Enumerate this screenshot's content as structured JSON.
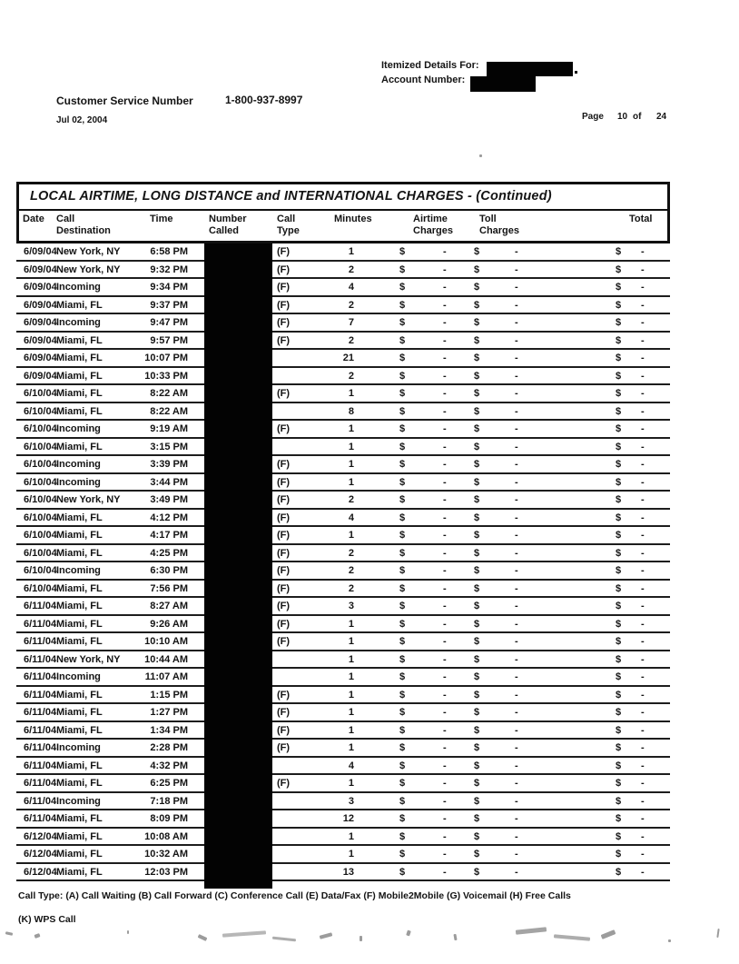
{
  "header": {
    "itemized_label": "Itemized Details For:",
    "account_label": "Account Number:",
    "customer_service_label": "Customer Service Number",
    "customer_service_number": "1-800-937-8997",
    "statement_date": "Jul 02, 2004",
    "page_label": "Page",
    "page_current": "10",
    "page_of": "of",
    "page_total": "24"
  },
  "table": {
    "title": "LOCAL AIRTIME, LONG DISTANCE and INTERNATIONAL CHARGES  - (Continued)",
    "columns": {
      "date": "Date",
      "destination_line1": "Call",
      "destination_line2": "Destination",
      "time": "Time",
      "number_line1": "Number",
      "number_line2": "Called",
      "type_line1": "Call",
      "type_line2": "Type",
      "minutes": "Minutes",
      "airtime_line1": "Airtime",
      "airtime_line2": "Charges",
      "toll_line1": "Toll",
      "toll_line2": "Charges",
      "total": "Total"
    },
    "currency_symbol": "$",
    "empty_amount": "-",
    "rows": [
      [
        "6/09/04",
        "New York, NY",
        "6:58 PM",
        "(F)",
        "1"
      ],
      [
        "6/09/04",
        "New York, NY",
        "9:32 PM",
        "(F)",
        "2"
      ],
      [
        "6/09/04",
        "Incoming",
        "9:34 PM",
        "(F)",
        "4"
      ],
      [
        "6/09/04",
        "Miami, FL",
        "9:37 PM",
        "(F)",
        "2"
      ],
      [
        "6/09/04",
        "Incoming",
        "9:47 PM",
        "(F)",
        "7"
      ],
      [
        "6/09/04",
        "Miami, FL",
        "9:57 PM",
        "(F)",
        "2"
      ],
      [
        "6/09/04",
        "Miami, FL",
        "10:07 PM",
        "",
        "21"
      ],
      [
        "6/09/04",
        "Miami, FL",
        "10:33 PM",
        "",
        "2"
      ],
      [
        "6/10/04",
        "Miami, FL",
        "8:22 AM",
        "(F)",
        "1"
      ],
      [
        "6/10/04",
        "Miami, FL",
        "8:22 AM",
        "",
        "8"
      ],
      [
        "6/10/04",
        "Incoming",
        "9:19 AM",
        "(F)",
        "1"
      ],
      [
        "6/10/04",
        "Miami, FL",
        "3:15 PM",
        "",
        "1"
      ],
      [
        "6/10/04",
        "Incoming",
        "3:39 PM",
        "(F)",
        "1"
      ],
      [
        "6/10/04",
        "Incoming",
        "3:44 PM",
        "(F)",
        "1"
      ],
      [
        "6/10/04",
        "New York, NY",
        "3:49 PM",
        "(F)",
        "2"
      ],
      [
        "6/10/04",
        "Miami, FL",
        "4:12 PM",
        "(F)",
        "4"
      ],
      [
        "6/10/04",
        "Miami, FL",
        "4:17 PM",
        "(F)",
        "1"
      ],
      [
        "6/10/04",
        "Miami, FL",
        "4:25 PM",
        "(F)",
        "2"
      ],
      [
        "6/10/04",
        "Incoming",
        "6:30 PM",
        "(F)",
        "2"
      ],
      [
        "6/10/04",
        "Miami, FL",
        "7:56 PM",
        "(F)",
        "2"
      ],
      [
        "6/11/04",
        "Miami, FL",
        "8:27 AM",
        "(F)",
        "3"
      ],
      [
        "6/11/04",
        "Miami, FL",
        "9:26 AM",
        "(F)",
        "1"
      ],
      [
        "6/11/04",
        "Miami, FL",
        "10:10 AM",
        "(F)",
        "1"
      ],
      [
        "6/11/04",
        "New York, NY",
        "10:44 AM",
        "",
        "1"
      ],
      [
        "6/11/04",
        "Incoming",
        "11:07 AM",
        "",
        "1"
      ],
      [
        "6/11/04",
        "Miami, FL",
        "1:15 PM",
        "(F)",
        "1"
      ],
      [
        "6/11/04",
        "Miami, FL",
        "1:27 PM",
        "(F)",
        "1"
      ],
      [
        "6/11/04",
        "Miami, FL",
        "1:34 PM",
        "(F)",
        "1"
      ],
      [
        "6/11/04",
        "Incoming",
        "2:28 PM",
        "(F)",
        "1"
      ],
      [
        "6/11/04",
        "Miami, FL",
        "4:32 PM",
        "",
        "4"
      ],
      [
        "6/11/04",
        "Miami, FL",
        "6:25 PM",
        "(F)",
        "1"
      ],
      [
        "6/11/04",
        "Incoming",
        "7:18 PM",
        "",
        "3"
      ],
      [
        "6/11/04",
        "Miami, FL",
        "8:09 PM",
        "",
        "12"
      ],
      [
        "6/12/04",
        "Miami, FL",
        "10:08 AM",
        "",
        "1"
      ],
      [
        "6/12/04",
        "Miami, FL",
        "10:32 AM",
        "",
        "1"
      ],
      [
        "6/12/04",
        "Miami, FL",
        "12:03 PM",
        "",
        "13"
      ]
    ]
  },
  "footer": {
    "legend_line1": "Call Type: (A) Call Waiting (B) Call Forward (C) Conference Call (E) Data/Fax (F) Mobile2Mobile (G) Voicemail (H) Free Calls",
    "legend_line2": "(K) WPS Call"
  }
}
